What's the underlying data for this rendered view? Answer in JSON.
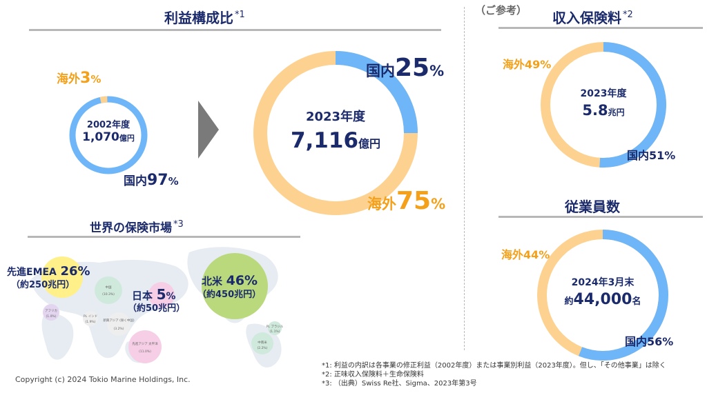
{
  "profit": {
    "title": "利益構成比",
    "title_note": "*1",
    "y2002": {
      "year": "2002年度",
      "amount": "1,070",
      "unit": "億円",
      "overseas_label": "海外",
      "overseas_pct": "3",
      "domestic_label": "国内",
      "domestic_pct": "97",
      "pct_sign": "%"
    },
    "y2023": {
      "year": "2023年度",
      "amount": "7,116",
      "unit": "億円",
      "domestic_label": "国内",
      "domestic_pct": "25",
      "overseas_label": "海外",
      "overseas_pct": "75",
      "pct_sign": "%"
    }
  },
  "reference": "（ご参考）",
  "premium": {
    "title": "収入保険料",
    "title_note": "*2",
    "year": "2023年度",
    "amount": "5.8",
    "unit": "兆円",
    "overseas": "海外49%",
    "domestic": "国内51%"
  },
  "employees": {
    "title": "従業員数",
    "date": "2024年3月末",
    "prefix": "約",
    "amount": "44,000",
    "unit": "名",
    "overseas": "海外44%",
    "domestic": "国内56%"
  },
  "market": {
    "title": "世界の保険市場",
    "title_note": "*3",
    "emea": {
      "name": "先進EMEA",
      "pct": "26%",
      "size": "（約250兆円）"
    },
    "japan": {
      "name": "日本",
      "pct": "5",
      "pct_sign": "%",
      "size": "（約50兆円）"
    },
    "na": {
      "name": "北米",
      "pct": "46%",
      "size": "（約450兆円）"
    },
    "minor": {
      "china": "中国",
      "china_val": "(10.3%)",
      "africa": "アフリカ",
      "africa_val": "(1.0%)",
      "india": "PL インド",
      "india_val": "(1.9%)",
      "sea": "新興アジア (除く中国)",
      "sea_val": "(3.2%)",
      "adv_asia": "先進アジア 太平洋",
      "adv_asia_val": "(11.0%)",
      "latam": "中南米",
      "latam_val": "(2.2%)",
      "brazil": "PL ブラジル",
      "brazil_val": "(1.1%)"
    }
  },
  "chart_data": [
    {
      "type": "pie",
      "title": "2002年度 1,070億円",
      "categories": [
        "国内",
        "海外"
      ],
      "values": [
        97,
        3
      ]
    },
    {
      "type": "pie",
      "title": "2023年度 7,116億円",
      "categories": [
        "国内",
        "海外"
      ],
      "values": [
        25,
        75
      ]
    },
    {
      "type": "pie",
      "title": "2023年度 5.8兆円",
      "categories": [
        "国内",
        "海外"
      ],
      "values": [
        51,
        49
      ]
    },
    {
      "type": "pie",
      "title": "2024年3月末 約44,000名",
      "categories": [
        "国内",
        "海外"
      ],
      "values": [
        56,
        44
      ]
    }
  ],
  "colors": {
    "domestic": "#6eb6f8",
    "overseas": "#fdd190",
    "navy": "#1b2a6b",
    "orange": "#f4a019"
  },
  "footnotes": [
    "*1: 利益の内訳は各事業の修正利益（2002年度）または事業別利益（2023年度）。但し、「その他事業」は除く",
    "*2: 正味収入保険料＋生命保険料",
    "*3: （出典）Swiss Re社、Sigma、2023年第3号"
  ],
  "copyright": "Copyright (c) 2024 Tokio Marine Holdings, Inc."
}
